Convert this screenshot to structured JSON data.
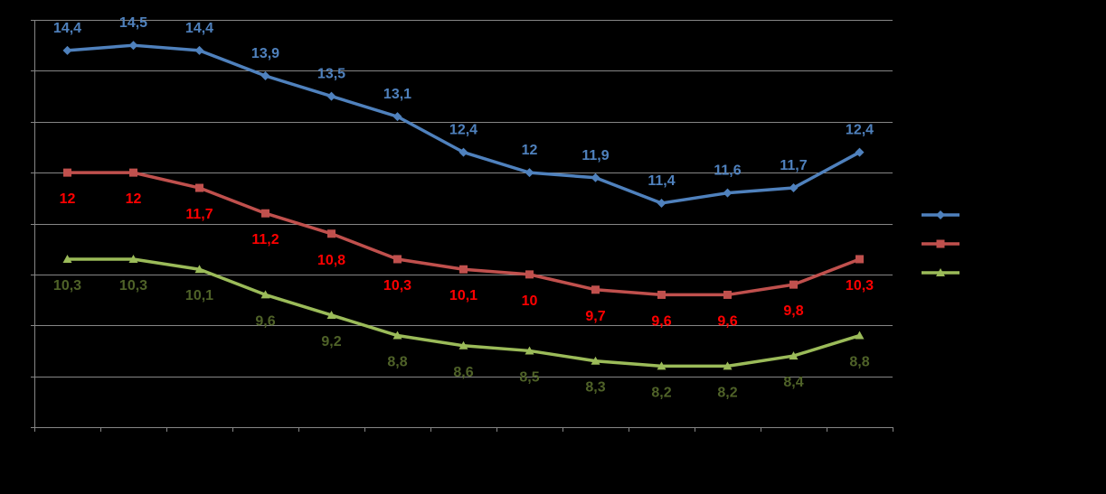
{
  "chart_data": {
    "type": "line",
    "title": "",
    "xlabel": "",
    "ylabel": "",
    "categories": [
      "",
      "",
      "",
      "",
      "",
      "",
      "",
      "",
      "",
      "",
      "",
      "",
      ""
    ],
    "ylim": [
      7,
      15
    ],
    "grid": true,
    "legend_position": "right",
    "series": [
      {
        "values": [
          14.4,
          14.5,
          14.4,
          13.9,
          13.5,
          13.1,
          12.4,
          12,
          11.9,
          11.4,
          11.6,
          11.7,
          12.4
        ],
        "labels": [
          "14,4",
          "14,5",
          "14,4",
          "13,9",
          "13,5",
          "13,1",
          "12,4",
          "12",
          "11,9",
          "11,4",
          "11,6",
          "11,7",
          "12,4"
        ],
        "color": "#4F81BD",
        "label_color": "#4F81BD",
        "marker": "diamond",
        "label_position": "above"
      },
      {
        "values": [
          12,
          12,
          11.7,
          11.2,
          10.8,
          10.3,
          10.1,
          10,
          9.7,
          9.6,
          9.6,
          9.8,
          10.3
        ],
        "labels": [
          "12",
          "12",
          "11,7",
          "11,2",
          "10,8",
          "10,3",
          "10,1",
          "10",
          "9,7",
          "9,6",
          "9,6",
          "9,8",
          "10,3"
        ],
        "color": "#C0504D",
        "label_color": "#FF0000",
        "marker": "square",
        "label_position": "below"
      },
      {
        "values": [
          10.3,
          10.3,
          10.1,
          9.6,
          9.2,
          8.8,
          8.6,
          8.5,
          8.3,
          8.2,
          8.2,
          8.4,
          8.8
        ],
        "labels": [
          "10,3",
          "10,3",
          "10,1",
          "9,6",
          "9,2",
          "8,8",
          "8,6",
          "8,5",
          "8,3",
          "8,2",
          "8,2",
          "8,4",
          "8,8"
        ],
        "color": "#9BBB59",
        "label_color": "#4F6228",
        "marker": "triangle",
        "label_position": "below"
      }
    ],
    "colors": {
      "background": "#000000",
      "gridline": "#868686",
      "axis": "#868686"
    }
  }
}
